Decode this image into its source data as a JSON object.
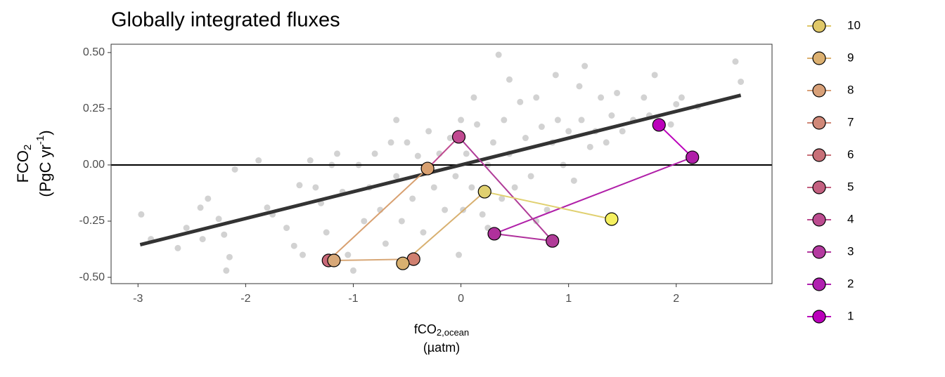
{
  "chart_data": {
    "type": "scatter",
    "title": "Globally integrated fluxes",
    "y_label": {
      "main": "FCO",
      "sub": "2",
      "unit": "(PgC yr",
      "sup": "-1",
      "close": ")"
    },
    "x_label": {
      "main": "fCO",
      "sub": "2,ocean",
      "unit": "(µatm)"
    },
    "xlim": [
      -3.25,
      2.89
    ],
    "ylim": [
      -0.528,
      0.537
    ],
    "xticks": [
      -3,
      -2,
      -1,
      0,
      1,
      2
    ],
    "yticks": [
      {
        "value": 0.5,
        "label": "0.50"
      },
      {
        "value": 0.25,
        "label": "0.25"
      },
      {
        "value": 0,
        "label": "0.00"
      },
      {
        "value": -0.25,
        "label": "-0.25"
      },
      {
        "value": -0.5,
        "label": "-0.50"
      }
    ],
    "hline": 0,
    "scatter": {
      "color": "#7f7f7f",
      "x": [
        -2.97,
        -2.88,
        -2.63,
        -2.55,
        -2.42,
        -2.4,
        -2.35,
        -2.25,
        -2.2,
        -2.18,
        -2.15,
        -2.1,
        -1.88,
        -1.8,
        -1.75,
        -1.62,
        -1.55,
        -1.5,
        -1.47,
        -1.4,
        -1.35,
        -1.3,
        -1.25,
        -1.2,
        -1.1,
        -1.05,
        -1.0,
        -0.95,
        -0.9,
        -0.85,
        -0.8,
        -0.75,
        -0.7,
        -0.65,
        -0.6,
        -0.55,
        -0.5,
        -0.45,
        -0.4,
        -0.35,
        -0.3,
        -0.25,
        -0.2,
        -0.15,
        -0.1,
        -0.05,
        0.0,
        0.02,
        0.05,
        0.1,
        0.12,
        0.15,
        0.2,
        0.25,
        0.3,
        0.35,
        0.38,
        0.4,
        0.45,
        0.5,
        0.55,
        0.6,
        0.65,
        0.7,
        0.75,
        0.8,
        0.85,
        0.88,
        0.9,
        0.95,
        1.0,
        1.05,
        1.1,
        1.12,
        1.15,
        1.2,
        1.25,
        1.3,
        1.35,
        1.4,
        1.45,
        1.5,
        1.6,
        1.7,
        1.75,
        1.8,
        1.95,
        2.0,
        2.05,
        2.2,
        2.55,
        2.6,
        -0.02,
        0.45,
        0.25,
        -0.6,
        -1.15,
        0.7
      ],
      "y": [
        -0.22,
        -0.33,
        -0.37,
        -0.28,
        -0.19,
        -0.33,
        -0.15,
        -0.24,
        -0.31,
        -0.47,
        -0.41,
        -0.02,
        0.02,
        -0.19,
        -0.22,
        -0.28,
        -0.36,
        -0.09,
        -0.4,
        0.02,
        -0.1,
        -0.17,
        -0.3,
        0.0,
        -0.12,
        -0.4,
        -0.47,
        0.0,
        -0.25,
        -0.1,
        0.05,
        -0.2,
        -0.35,
        0.1,
        -0.05,
        -0.25,
        0.1,
        -0.15,
        0.04,
        -0.3,
        0.15,
        -0.1,
        0.05,
        -0.2,
        0.12,
        -0.05,
        0.2,
        -0.2,
        0.05,
        -0.1,
        0.3,
        0.18,
        -0.22,
        0.0,
        0.1,
        0.49,
        -0.15,
        0.2,
        0.05,
        -0.1,
        0.28,
        0.12,
        -0.05,
        0.3,
        0.17,
        -0.2,
        0.1,
        0.4,
        0.2,
        0.0,
        0.15,
        -0.07,
        0.35,
        0.2,
        0.44,
        0.08,
        0.15,
        0.3,
        0.1,
        0.22,
        0.32,
        0.15,
        0.2,
        0.3,
        0.22,
        0.4,
        0.18,
        0.27,
        0.3,
        0.26,
        0.46,
        0.37,
        -0.4,
        0.38,
        -0.28,
        0.2,
        0.05,
        -0.25
      ]
    },
    "fit": {
      "color": "#333333",
      "x": [
        -2.98,
        2.6
      ],
      "y": [
        -0.355,
        0.31
      ]
    },
    "trajectory": {
      "x": [
        1.84,
        2.15,
        0.31,
        0.85,
        -0.02,
        -0.31,
        -1.23,
        -1.18,
        -0.44,
        -0.54,
        0.22,
        1.4
      ],
      "y": [
        0.178,
        0.034,
        -0.306,
        -0.338,
        0.125,
        -0.016,
        -0.425,
        -0.425,
        -0.419,
        -0.438,
        -0.119,
        -0.241
      ],
      "colors": [
        "#bb00bb",
        "#b01fa8",
        "#b0309c",
        "#b03c98",
        "#c04a90",
        "#d8a070",
        "#c86878",
        "#d8a878",
        "#d08070",
        "#d8b070",
        "#e0d070",
        "#f5f060"
      ]
    },
    "legend": {
      "labels": [
        10,
        9,
        8,
        7,
        6,
        5,
        4,
        3,
        2,
        1
      ],
      "colors": [
        "#e0c868",
        "#dcb070",
        "#d8a078",
        "#d08878",
        "#c87078",
        "#c46080",
        "#bc4c90",
        "#b43aa0",
        "#b020b0",
        "#bb00bb"
      ]
    }
  }
}
